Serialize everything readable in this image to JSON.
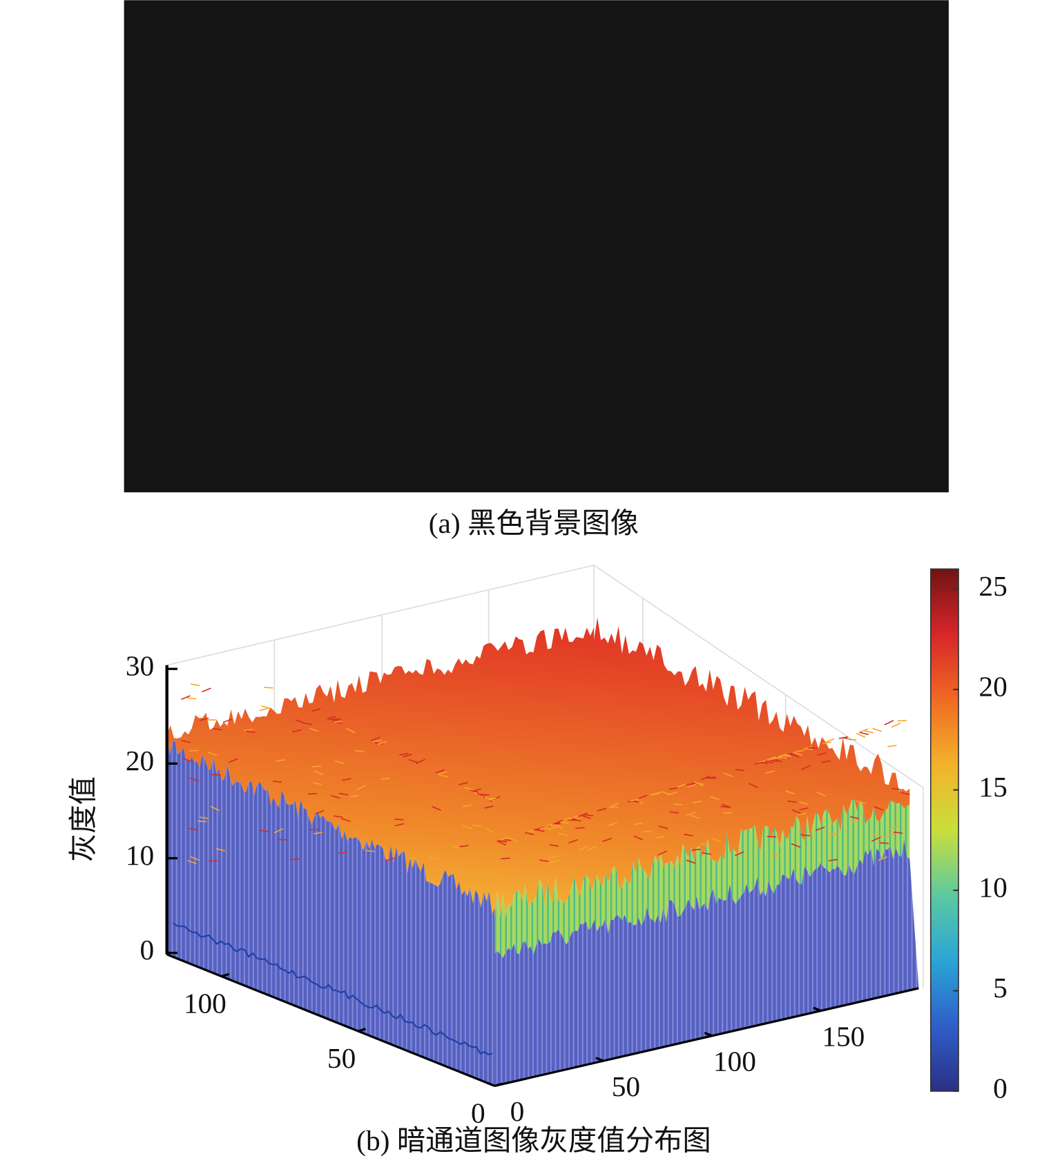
{
  "panel_a": {
    "caption": "(a) 黑色背景图像"
  },
  "panel_b": {
    "type": "surface",
    "caption": "(b) 暗通道图像灰度值分布图",
    "z_label": "灰度值",
    "zlim": [
      0,
      30
    ],
    "zticks": [
      0,
      10,
      20,
      30
    ],
    "xlim": [
      0,
      195
    ],
    "xticks": [
      0,
      50,
      100,
      150
    ],
    "ylim": [
      0,
      120
    ],
    "yticks": [
      0,
      50,
      100
    ],
    "clim": [
      0,
      26
    ],
    "colorbar_ticks": [
      0,
      5,
      10,
      15,
      20,
      25
    ],
    "colormap": [
      "#2b2f86",
      "#2f5fc8",
      "#2aa5d6",
      "#5cc9a0",
      "#c9df3a",
      "#f3b22a",
      "#ef6a22",
      "#d8262a",
      "#701414"
    ]
  }
}
